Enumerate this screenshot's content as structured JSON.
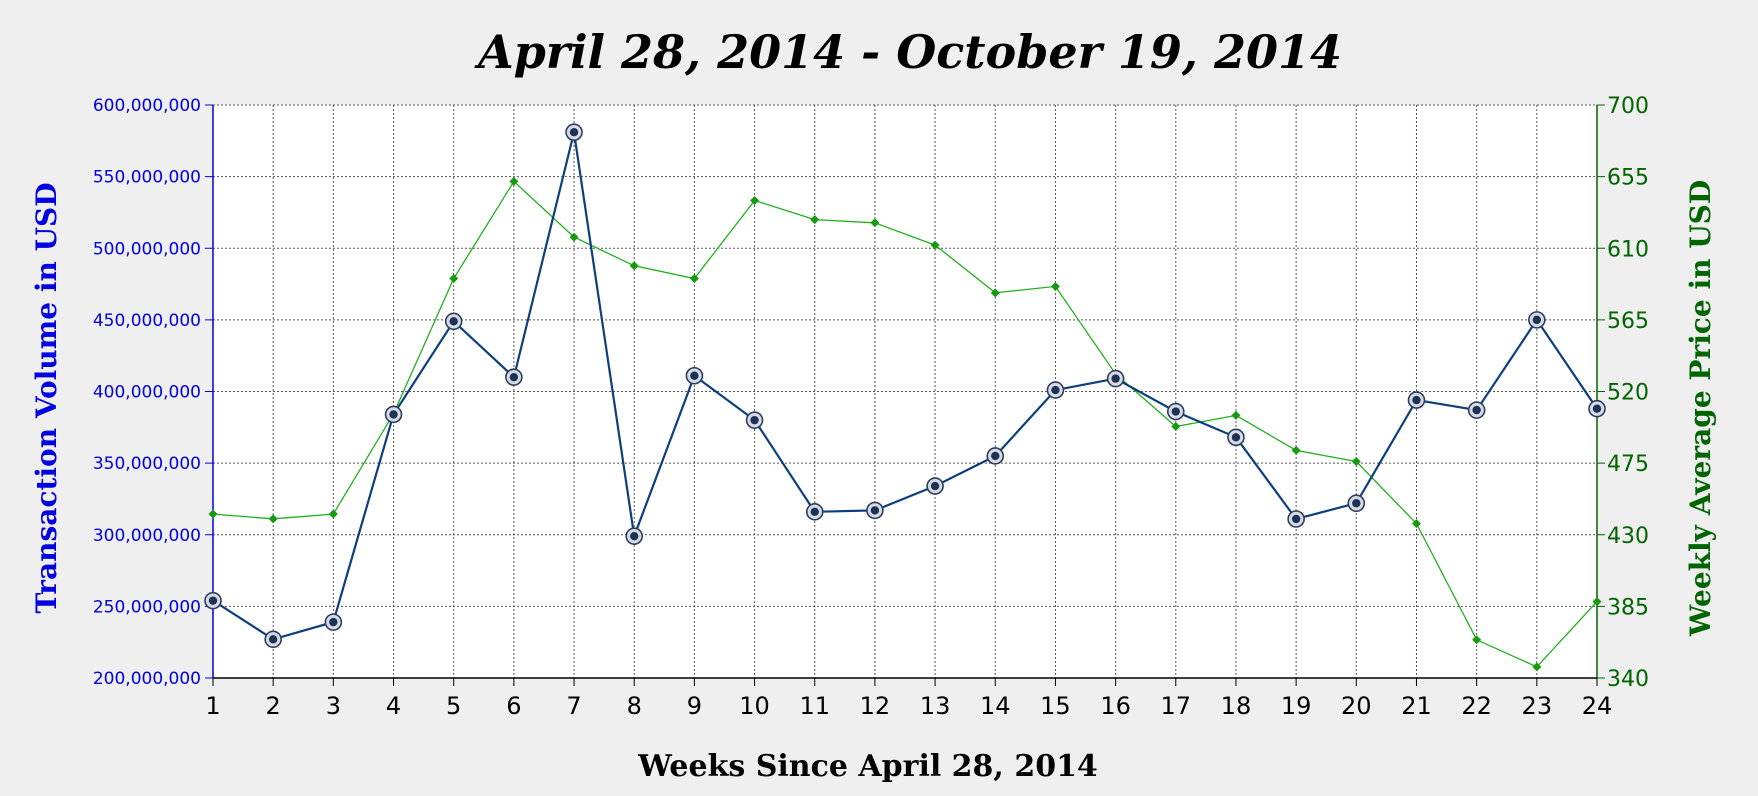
{
  "chart_data": {
    "type": "line",
    "title": "April 28, 2014 - October 19, 2014",
    "xlabel": "Weeks Since April 28, 2014",
    "ylabel_left": "Transaction Volume in USD",
    "ylabel_right": "Weekly Average Price in USD",
    "x": [
      1,
      2,
      3,
      4,
      5,
      6,
      7,
      8,
      9,
      10,
      11,
      12,
      13,
      14,
      15,
      16,
      17,
      18,
      19,
      20,
      21,
      22,
      23,
      24
    ],
    "x_tick_labels": [
      "1",
      "2",
      "3",
      "4",
      "5",
      "6",
      "7",
      "8",
      "9",
      "10",
      "11",
      "12",
      "13",
      "14",
      "15",
      "16",
      "17",
      "18",
      "19",
      "20",
      "21",
      "22",
      "23",
      "24"
    ],
    "ylim_left": [
      200000000,
      600000000
    ],
    "ylim_right": [
      340,
      700
    ],
    "y_left_tick_labels": [
      "200,000,000",
      "250,000,000",
      "300,000,000",
      "350,000,000",
      "400,000,000",
      "450,000,000",
      "500,000,000",
      "550,000,000",
      "600,000,000"
    ],
    "y_right_tick_labels": [
      "340",
      "385",
      "430",
      "475",
      "520",
      "565",
      "610",
      "655",
      "700"
    ],
    "grid": true,
    "series": [
      {
        "axis": "left",
        "color": "#0d3f7e",
        "values": [
          254000000,
          227000000,
          239000000,
          384000000,
          449000000,
          410000000,
          581000000,
          299000000,
          411000000,
          380000000,
          316000000,
          317000000,
          334000000,
          355000000,
          401000000,
          409000000,
          386000000,
          368000000,
          311000000,
          322000000,
          394000000,
          387000000,
          450000000,
          388000000
        ]
      },
      {
        "axis": "right",
        "color": "#22b01c",
        "values": [
          443,
          440,
          443,
          506,
          591,
          652,
          617,
          599,
          591,
          640,
          628,
          626,
          612,
          582,
          586,
          531,
          498,
          505,
          483,
          476,
          437,
          364,
          347,
          388
        ]
      }
    ],
    "colors": {
      "left_axis": "#0000e0",
      "right_axis": "#006400",
      "volume_line": "#0d3f7e",
      "price_line": "#22b01c"
    }
  }
}
